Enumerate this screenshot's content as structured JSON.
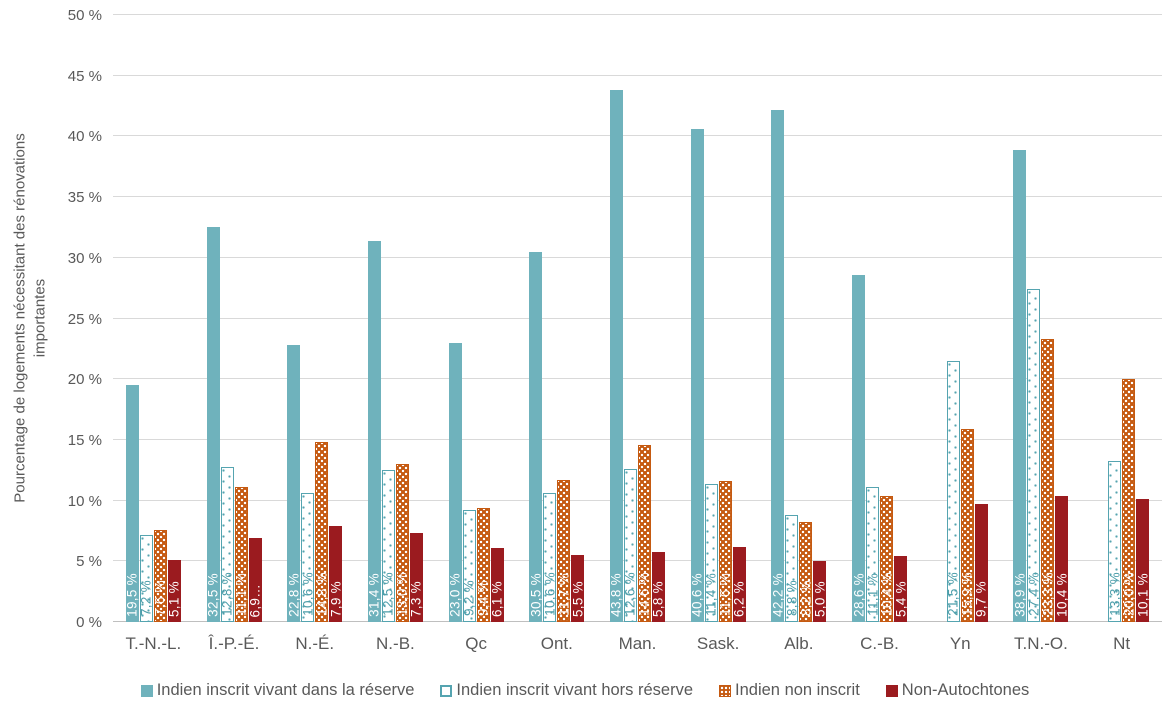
{
  "chart_data": {
    "type": "bar",
    "ylabel": "Pourcentage de logements nécessitant des rénovations importantes",
    "ylabel_lines": [
      "Pourcentage de logements nécessitant des rénovations",
      "importantes"
    ],
    "ylim": [
      0,
      50
    ],
    "ytick_step": 5,
    "yticks": [
      "0 %",
      "5 %",
      "10 %",
      "15 %",
      "20 %",
      "25 %",
      "30 %",
      "35 %",
      "40 %",
      "45 %",
      "50 %"
    ],
    "grid": true,
    "legend_position": "bottom",
    "categories": [
      "T.-N.-L.",
      "Î.-P.-É.",
      "N.-É.",
      "N.-B.",
      "Qc",
      "Ont.",
      "Man.",
      "Sask.",
      "Alb.",
      "C.-B.",
      "Yn",
      "T.N.-O.",
      "Nt"
    ],
    "series": [
      {
        "name": "Indien inscrit vivant dans la réserve",
        "style": "solid-teal",
        "values": [
          19.5,
          32.5,
          22.8,
          31.4,
          23.0,
          30.5,
          43.8,
          40.6,
          42.2,
          28.6,
          null,
          38.9,
          null
        ],
        "labels": [
          "19,5 %",
          "32,5 %",
          "22,8 %",
          "31,4 %",
          "23,0 %",
          "30,5 %",
          "43,8 %",
          "40,6 %",
          "42,2 %",
          "28,6 %",
          null,
          "38,9 %",
          null
        ]
      },
      {
        "name": "Indien inscrit vivant hors réserve",
        "style": "dotted-teal",
        "values": [
          7.2,
          12.8,
          10.6,
          12.5,
          9.2,
          10.6,
          12.6,
          11.4,
          8.8,
          11.1,
          21.5,
          27.4,
          13.3
        ],
        "labels": [
          "7,2 %",
          "12,8 %",
          "10,6 %",
          "12,5 %",
          "9,2 %",
          "10,6 %",
          "12,6 %",
          "11,4 %",
          "8,8 %",
          "11,1 %",
          "21,5 %",
          "27,4 %",
          "13,3 %"
        ]
      },
      {
        "name": "Indien non inscrit",
        "style": "pattern-orange",
        "values": [
          7.6,
          11.1,
          14.8,
          13.0,
          9.4,
          11.7,
          14.6,
          11.6,
          8.2,
          10.4,
          15.9,
          23.3,
          20.0
        ],
        "labels": [
          "7,6 %",
          "11,1 %",
          "14,8 %",
          "13,0 %",
          "9,4 %",
          "11,7 %",
          "14,6 %",
          "11,6 %",
          "8,2 %",
          "10,4 %",
          "15,9 %",
          "23,3 %",
          "20,0 %"
        ]
      },
      {
        "name": "Non-Autochtones",
        "style": "solid-darkred",
        "values": [
          5.1,
          6.9,
          7.9,
          7.3,
          6.1,
          5.5,
          5.8,
          6.2,
          5.0,
          5.4,
          9.7,
          10.4,
          10.1
        ],
        "labels": [
          "5,1 %",
          "6,9…",
          "7,9 %",
          "7,3 %",
          "6,1 %",
          "5,5 %",
          "5,8 %",
          "6,2 %",
          "5,0 %",
          "5,4 %",
          "9,7 %",
          "10,4 %",
          "10,1 %"
        ]
      }
    ],
    "colors": {
      "teal": "#6FB2BC",
      "teal_border": "#55A4B0",
      "teal_label": "#4D9EAA",
      "orange": "#C55A11",
      "darkred": "#9B1B1F",
      "label_on_bar": "#FFFFFF",
      "axis_text": "#595959",
      "gridline": "#D9D9D9",
      "axis_line": "#BFBFBF",
      "background": "#FFFFFF"
    }
  }
}
